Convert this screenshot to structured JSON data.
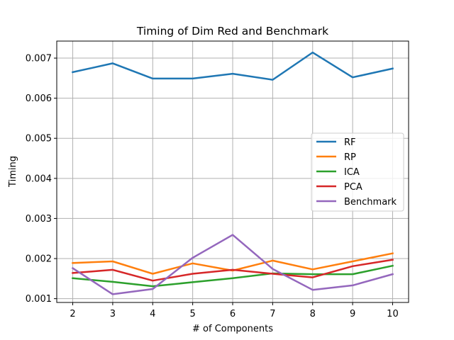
{
  "chart_data": {
    "type": "line",
    "title": "Timing of Dim Red and Benchmark",
    "xlabel": "# of Components",
    "ylabel": "Timing",
    "x": [
      2,
      3,
      4,
      5,
      6,
      7,
      8,
      9,
      10
    ],
    "xlim": [
      1.6,
      10.4
    ],
    "ylim": [
      0.000905,
      0.007425
    ],
    "xticks": [
      "2",
      "3",
      "4",
      "5",
      "6",
      "7",
      "8",
      "9",
      "10"
    ],
    "yticks": [
      {
        "value": 0.001,
        "label": "0.001"
      },
      {
        "value": 0.002,
        "label": "0.002"
      },
      {
        "value": 0.003,
        "label": "0.003"
      },
      {
        "value": 0.004,
        "label": "0.004"
      },
      {
        "value": 0.005,
        "label": "0.005"
      },
      {
        "value": 0.006,
        "label": "0.006"
      },
      {
        "value": 0.007,
        "label": "0.007"
      }
    ],
    "grid": true,
    "legend_position": "center-right",
    "series": [
      {
        "name": "RF",
        "color": "#1f77b4",
        "values": [
          0.00665,
          0.00687,
          0.00649,
          0.00649,
          0.00661,
          0.00646,
          0.00714,
          0.00652,
          0.00674
        ]
      },
      {
        "name": "RP",
        "color": "#ff7f0e",
        "values": [
          0.00189,
          0.00193,
          0.00162,
          0.00188,
          0.0017,
          0.00195,
          0.00173,
          0.00193,
          0.00213
        ]
      },
      {
        "name": "ICA",
        "color": "#2ca02c",
        "values": [
          0.00151,
          0.00142,
          0.00131,
          0.00141,
          0.00151,
          0.00163,
          0.00161,
          0.00161,
          0.00182
        ]
      },
      {
        "name": "PCA",
        "color": "#d62728",
        "values": [
          0.00164,
          0.00172,
          0.00145,
          0.00162,
          0.00172,
          0.00162,
          0.00153,
          0.00181,
          0.00197
        ]
      },
      {
        "name": "Benchmark",
        "color": "#9467bd",
        "values": [
          0.00176,
          0.00111,
          0.00124,
          0.00202,
          0.00259,
          0.00174,
          0.00122,
          0.00133,
          0.00161
        ]
      }
    ]
  }
}
